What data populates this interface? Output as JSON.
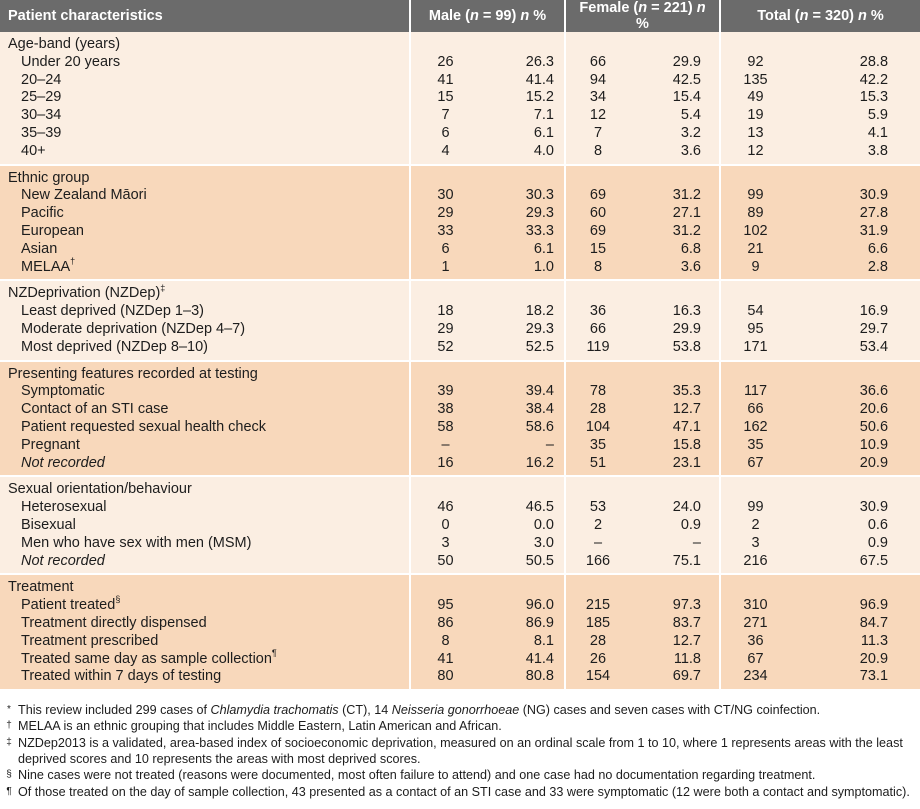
{
  "header": {
    "col0": "Patient characteristics",
    "male": "Male (n = 99) n %",
    "female": "Female (n = 221) n %",
    "total": "Total (n = 320) n %"
  },
  "sections": [
    {
      "title": "Age-band (years)",
      "rows": [
        {
          "label": "Under 20 years",
          "m_n": "26",
          "m_p": "26.3",
          "f_n": "66",
          "f_p": "29.9",
          "t_n": "92",
          "t_p": "28.8"
        },
        {
          "label": "20–24",
          "m_n": "41",
          "m_p": "41.4",
          "f_n": "94",
          "f_p": "42.5",
          "t_n": "135",
          "t_p": "42.2"
        },
        {
          "label": "25–29",
          "m_n": "15",
          "m_p": "15.2",
          "f_n": "34",
          "f_p": "15.4",
          "t_n": "49",
          "t_p": "15.3"
        },
        {
          "label": "30–34",
          "m_n": "7",
          "m_p": "7.1",
          "f_n": "12",
          "f_p": "5.4",
          "t_n": "19",
          "t_p": "5.9"
        },
        {
          "label": "35–39",
          "m_n": "6",
          "m_p": "6.1",
          "f_n": "7",
          "f_p": "3.2",
          "t_n": "13",
          "t_p": "4.1"
        },
        {
          "label": "40+",
          "m_n": "4",
          "m_p": "4.0",
          "f_n": "8",
          "f_p": "3.6",
          "t_n": "12",
          "t_p": "3.8"
        }
      ]
    },
    {
      "title": "Ethnic group",
      "rows": [
        {
          "label": "New Zealand Māori",
          "m_n": "30",
          "m_p": "30.3",
          "f_n": "69",
          "f_p": "31.2",
          "t_n": "99",
          "t_p": "30.9"
        },
        {
          "label": "Pacific",
          "m_n": "29",
          "m_p": "29.3",
          "f_n": "60",
          "f_p": "27.1",
          "t_n": "89",
          "t_p": "27.8"
        },
        {
          "label": "European",
          "m_n": "33",
          "m_p": "33.3",
          "f_n": "69",
          "f_p": "31.2",
          "t_n": "102",
          "t_p": "31.9"
        },
        {
          "label": "Asian",
          "m_n": "6",
          "m_p": "6.1",
          "f_n": "15",
          "f_p": "6.8",
          "t_n": "21",
          "t_p": "6.6"
        },
        {
          "label": "MELAA",
          "sup": "†",
          "m_n": "1",
          "m_p": "1.0",
          "f_n": "8",
          "f_p": "3.6",
          "t_n": "9",
          "t_p": "2.8"
        }
      ]
    },
    {
      "title": "NZDeprivation (NZDep)",
      "title_sup": "‡",
      "rows": [
        {
          "label": "Least deprived (NZDep 1–3)",
          "m_n": "18",
          "m_p": "18.2",
          "f_n": "36",
          "f_p": "16.3",
          "t_n": "54",
          "t_p": "16.9"
        },
        {
          "label": "Moderate deprivation (NZDep 4–7)",
          "m_n": "29",
          "m_p": "29.3",
          "f_n": "66",
          "f_p": "29.9",
          "t_n": "95",
          "t_p": "29.7"
        },
        {
          "label": "Most deprived (NZDep 8–10)",
          "m_n": "52",
          "m_p": "52.5",
          "f_n": "119",
          "f_p": "53.8",
          "t_n": "171",
          "t_p": "53.4"
        }
      ]
    },
    {
      "title": "Presenting features recorded at testing",
      "rows": [
        {
          "label": "Symptomatic",
          "m_n": "39",
          "m_p": "39.4",
          "f_n": "78",
          "f_p": "35.3",
          "t_n": "117",
          "t_p": "36.6"
        },
        {
          "label": "Contact of an STI case",
          "m_n": "38",
          "m_p": "38.4",
          "f_n": "28",
          "f_p": "12.7",
          "t_n": "66",
          "t_p": "20.6"
        },
        {
          "label": "Patient requested sexual health check",
          "m_n": "58",
          "m_p": "58.6",
          "f_n": "104",
          "f_p": "47.1",
          "t_n": "162",
          "t_p": "50.6"
        },
        {
          "label": "Pregnant",
          "m_n": "–",
          "m_p": "–",
          "f_n": "35",
          "f_p": "15.8",
          "t_n": "35",
          "t_p": "10.9"
        },
        {
          "label": "Not recorded",
          "italic": true,
          "m_n": "16",
          "m_p": "16.2",
          "f_n": "51",
          "f_p": "23.1",
          "t_n": "67",
          "t_p": "20.9"
        }
      ]
    },
    {
      "title": "Sexual orientation/behaviour",
      "rows": [
        {
          "label": "Heterosexual",
          "m_n": "46",
          "m_p": "46.5",
          "f_n": "53",
          "f_p": "24.0",
          "t_n": "99",
          "t_p": "30.9"
        },
        {
          "label": "Bisexual",
          "m_n": "0",
          "m_p": "0.0",
          "f_n": "2",
          "f_p": "0.9",
          "t_n": "2",
          "t_p": "0.6"
        },
        {
          "label": "Men who have sex with men (MSM)",
          "m_n": "3",
          "m_p": "3.0",
          "f_n": "–",
          "f_p": "–",
          "t_n": "3",
          "t_p": "0.9"
        },
        {
          "label": "Not recorded",
          "italic": true,
          "m_n": "50",
          "m_p": "50.5",
          "f_n": "166",
          "f_p": "75.1",
          "t_n": "216",
          "t_p": "67.5"
        }
      ]
    },
    {
      "title": "Treatment",
      "rows": [
        {
          "label": "Patient treated",
          "sup": "§",
          "m_n": "95",
          "m_p": "96.0",
          "f_n": "215",
          "f_p": "97.3",
          "t_n": "310",
          "t_p": "96.9"
        },
        {
          "label": "Treatment directly dispensed",
          "m_n": "86",
          "m_p": "86.9",
          "f_n": "185",
          "f_p": "83.7",
          "t_n": "271",
          "t_p": "84.7"
        },
        {
          "label": "Treatment prescribed",
          "m_n": "8",
          "m_p": "8.1",
          "f_n": "28",
          "f_p": "12.7",
          "t_n": "36",
          "t_p": "11.3"
        },
        {
          "label": "Treated same day as sample collection",
          "sup": "¶",
          "m_n": "41",
          "m_p": "41.4",
          "f_n": "26",
          "f_p": "11.8",
          "t_n": "67",
          "t_p": "20.9"
        },
        {
          "label": "Treated within 7 days of testing",
          "m_n": "80",
          "m_p": "80.8",
          "f_n": "154",
          "f_p": "69.7",
          "t_n": "234",
          "t_p": "73.1"
        }
      ]
    }
  ],
  "notes": [
    {
      "mark": "*",
      "parts": [
        {
          "t": "This review included 299 cases of "
        },
        {
          "t": "Chlamydia trachomatis",
          "i": true
        },
        {
          "t": " (CT), 14 "
        },
        {
          "t": "Neisseria gonorrhoeae",
          "i": true
        },
        {
          "t": " (NG) cases and seven cases with CT/NG coinfection."
        }
      ]
    },
    {
      "mark": "†",
      "parts": [
        {
          "t": "MELAA is an ethnic grouping that includes Middle Eastern, Latin American and African."
        }
      ]
    },
    {
      "mark": "‡",
      "parts": [
        {
          "t": "NZDep2013 is a validated, area-based index of socioeconomic deprivation, measured on an ordinal scale from 1 to 10, where 1 represents areas with the least deprived scores and 10 represents the areas with most deprived scores."
        }
      ]
    },
    {
      "mark": "§",
      "parts": [
        {
          "t": "Nine cases were not treated (reasons were documented, most often failure to attend) and one case had no documentation regarding treatment."
        }
      ]
    },
    {
      "mark": "¶",
      "parts": [
        {
          "t": "Of those treated on the day of sample collection, 43 presented as a contact of an STI case and 33 were symptomatic (12 were both a contact and symptomatic)."
        }
      ]
    }
  ]
}
